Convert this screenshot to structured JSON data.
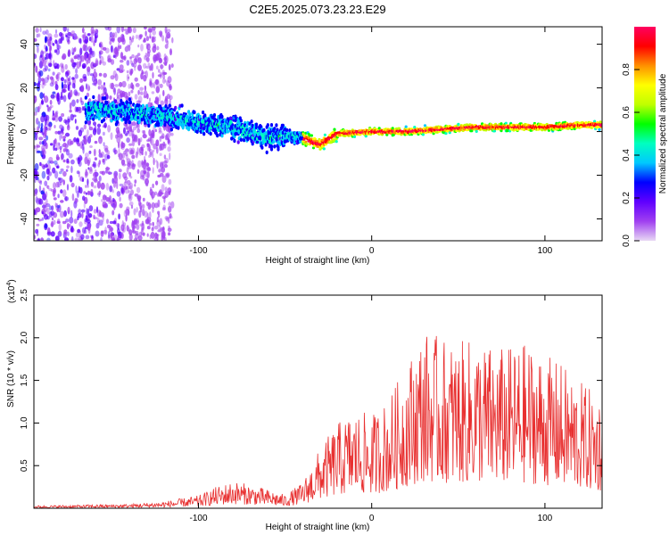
{
  "title": "C2E5.2025.073.23.23.E29",
  "chart_data": [
    {
      "type": "heatmap",
      "xlabel": "Height of straight line (km)",
      "ylabel": "Frequency (Hz)",
      "xlim": [
        -195,
        133
      ],
      "ylim": [
        -50,
        48
      ],
      "xticks": [
        -100,
        0,
        100
      ],
      "yticks": [
        40,
        20,
        0,
        -20,
        -40
      ],
      "colorbar": {
        "label": "Normalized spectral amplitude",
        "ticks": [
          0.0,
          0.2,
          0.4,
          0.6,
          0.8
        ],
        "range": [
          0,
          1
        ],
        "colors": [
          "#e8d8f4",
          "#a040f0",
          "#6000ff",
          "#0000ff",
          "#00c8ff",
          "#00ffc0",
          "#00ff00",
          "#c0ff00",
          "#ffff00",
          "#ff9000",
          "#ff0000",
          "#ff0060"
        ]
      },
      "ridge": {
        "x": [
          -160,
          -140,
          -120,
          -100,
          -80,
          -60,
          -50,
          -40,
          -30,
          -20,
          0,
          20,
          40,
          60,
          80,
          100,
          120,
          133
        ],
        "y": [
          10,
          9,
          7,
          4,
          2,
          -3,
          -2,
          -3,
          -6,
          -1,
          0,
          0,
          1,
          2,
          2,
          2,
          3,
          3
        ]
      }
    },
    {
      "type": "line",
      "xlabel": "Height of straight line (km)",
      "ylabel": "SNR (10 * v/v)",
      "yscale_label": "(x10",
      "yscale_exp": "4",
      "xlim": [
        -195,
        133
      ],
      "ylim": [
        0,
        25000
      ],
      "xticks": [
        -100,
        0,
        100
      ],
      "yticks": [
        0.5,
        1.0,
        1.5,
        2.0,
        2.5
      ],
      "color": "#e83030",
      "envelope": {
        "x": [
          -195,
          -140,
          -120,
          -100,
          -90,
          -80,
          -70,
          -60,
          -50,
          -40,
          -30,
          -20,
          -10,
          0,
          10,
          20,
          30,
          40,
          50,
          60,
          70,
          80,
          90,
          100,
          110,
          120,
          133
        ],
        "y": [
          300,
          500,
          800,
          1500,
          2500,
          3200,
          2800,
          2200,
          1600,
          3000,
          7000,
          10000,
          11500,
          11000,
          13000,
          17000,
          21000,
          20000,
          19500,
          20000,
          19000,
          19000,
          19500,
          18000,
          17000,
          15000,
          13000
        ]
      }
    }
  ]
}
